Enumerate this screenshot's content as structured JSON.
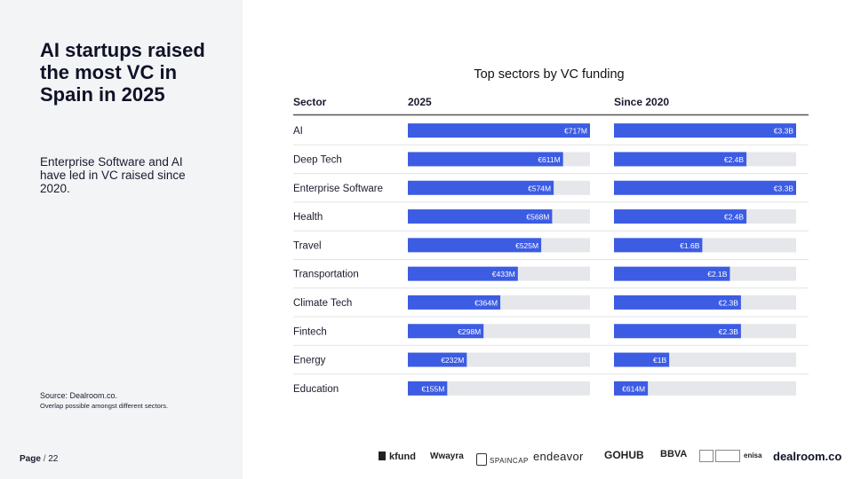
{
  "headline": "AI startups raised the most VC in Spain in 2025",
  "subtext": "Enterprise Software and AI have led in VC raised since 2020.",
  "source": {
    "line1": "Source:  Dealroom.co.",
    "line2": "Overlap possible amongst different sectors."
  },
  "page": {
    "label": "Page",
    "sep": "/",
    "number": "22"
  },
  "logos": {
    "kfund": "kfund",
    "wayra": "wayra",
    "spaincap": "SPAINCAP",
    "endeavor": "endeavor",
    "gohub": "GOHUB",
    "bbva": "BBVA",
    "enisa": "enisa",
    "dealroom": "dealroom.co"
  },
  "colors": {
    "bar": "#3c5ce3",
    "track": "#e5e7eb",
    "header_rule": "#555555",
    "row_rule": "#e3e3e3"
  },
  "chart_data": {
    "type": "table",
    "title": "Top sectors by VC funding",
    "columns": [
      "Sector",
      "2025",
      "Since 2020"
    ],
    "categories": [
      "AI",
      "Deep Tech",
      "Enterprise Software",
      "Health",
      "Travel",
      "Transportation",
      "Climate Tech",
      "Fintech",
      "Energy",
      "Education"
    ],
    "series": [
      {
        "name": "2025",
        "unit": "€M",
        "values": [
          717,
          611,
          574,
          568,
          525,
          433,
          364,
          298,
          232,
          155
        ],
        "labels": [
          "€717M",
          "€611M",
          "€574M",
          "€568M",
          "€525M",
          "€433M",
          "€364M",
          "€298M",
          "€232M",
          "€155M"
        ]
      },
      {
        "name": "Since 2020",
        "unit": "€B",
        "values": [
          3.3,
          2.4,
          3.3,
          2.4,
          1.6,
          2.1,
          2.3,
          2.3,
          1.0,
          0.614
        ],
        "labels": [
          "€3.3B",
          "€2.4B",
          "€3.3B",
          "€2.4B",
          "€1.6B",
          "€2.1B",
          "€2.3B",
          "€2.3B",
          "€1B",
          "€614M"
        ]
      }
    ]
  }
}
